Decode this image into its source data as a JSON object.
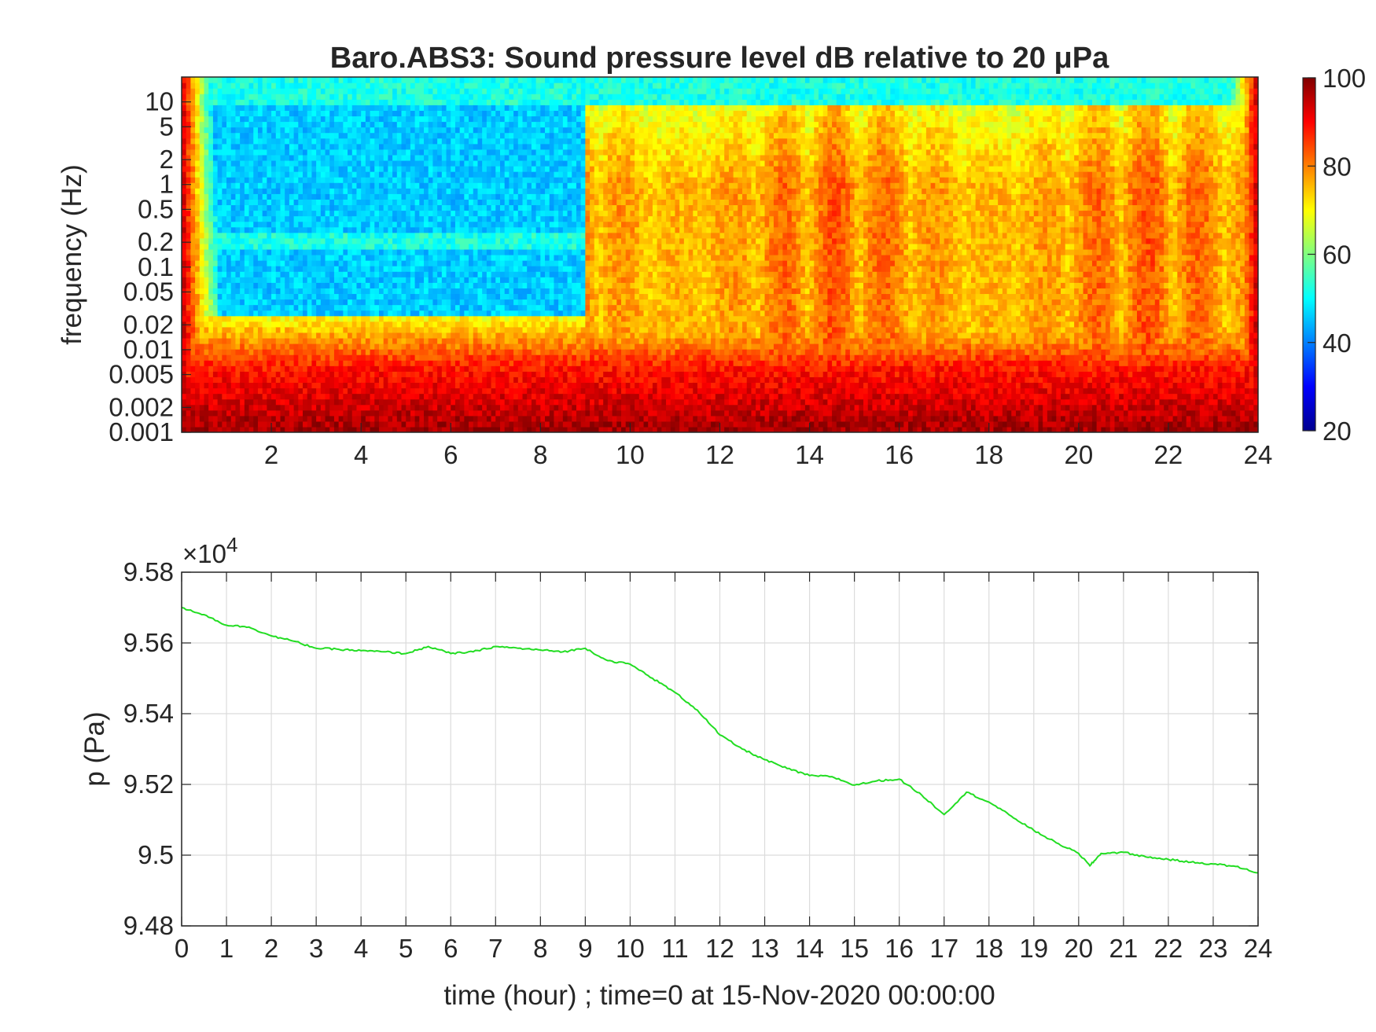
{
  "chart_data": [
    {
      "type": "heatmap",
      "title": "Baro.ABS3: Sound pressure level dB relative to 20 μPa",
      "xlabel": "",
      "ylabel": "frequency (Hz)",
      "xlim": [
        0,
        24
      ],
      "x_ticks": [
        "2",
        "4",
        "6",
        "8",
        "10",
        "12",
        "14",
        "16",
        "18",
        "20",
        "22",
        "24"
      ],
      "y_scale": "log",
      "ylim": [
        0.001,
        20
      ],
      "y_ticks": [
        "0.001",
        "0.002",
        "0.005",
        "0.01",
        "0.02",
        "0.05",
        "0.1",
        "0.2",
        "0.5",
        "1",
        "2",
        "5",
        "10"
      ],
      "colorbar": {
        "colormap": "jet",
        "range": [
          20,
          100
        ],
        "ticks": [
          "20",
          "40",
          "60",
          "80",
          "100"
        ]
      },
      "description_levels": {
        "quiet_period_hours": [
          0,
          9
        ],
        "active_period_hours": [
          9,
          24
        ],
        "high_band_level_db": 50,
        "low_frequency_level_db": 90
      }
    },
    {
      "type": "line",
      "title": "",
      "xlabel": "time (hour) ; time=0 at 15-Nov-2020 00:00:00",
      "ylabel": "p (Pa)",
      "xlim": [
        0,
        24
      ],
      "ylim": [
        94800,
        95800
      ],
      "exponent_label": "×10",
      "exponent_power": "4",
      "x_ticks": [
        "0",
        "1",
        "2",
        "3",
        "4",
        "5",
        "6",
        "7",
        "8",
        "9",
        "10",
        "11",
        "12",
        "13",
        "14",
        "15",
        "16",
        "17",
        "18",
        "19",
        "20",
        "21",
        "22",
        "23",
        "24"
      ],
      "y_ticks": [
        "9.48",
        "9.5",
        "9.52",
        "9.54",
        "9.56",
        "9.58"
      ],
      "grid": true,
      "line_color": "#22dd22",
      "series": [
        {
          "name": "",
          "x": [
            0,
            0.5,
            1,
            1.5,
            2,
            2.5,
            3,
            3.5,
            4,
            4.5,
            5,
            5.5,
            6,
            6.5,
            7,
            7.5,
            8,
            8.5,
            9,
            9.5,
            10,
            10.5,
            11,
            11.5,
            12,
            12.5,
            13,
            13.5,
            14,
            14.5,
            15,
            15.5,
            16,
            16.5,
            17,
            17.5,
            18,
            18.5,
            19,
            19.5,
            20,
            20.25,
            20.5,
            21,
            21.5,
            22,
            22.5,
            23,
            23.5,
            24
          ],
          "y": [
            95700,
            95680,
            95650,
            95645,
            95620,
            95605,
            95585,
            95582,
            95578,
            95575,
            95570,
            95590,
            95570,
            95575,
            95590,
            95585,
            95580,
            95575,
            95585,
            95550,
            95540,
            95500,
            95460,
            95410,
            95340,
            95300,
            95270,
            95245,
            95225,
            95222,
            95198,
            95210,
            95215,
            95170,
            95115,
            95178,
            95150,
            95110,
            95070,
            95035,
            95005,
            94970,
            95005,
            95008,
            94995,
            94988,
            94980,
            94975,
            94968,
            94950
          ]
        }
      ]
    }
  ]
}
